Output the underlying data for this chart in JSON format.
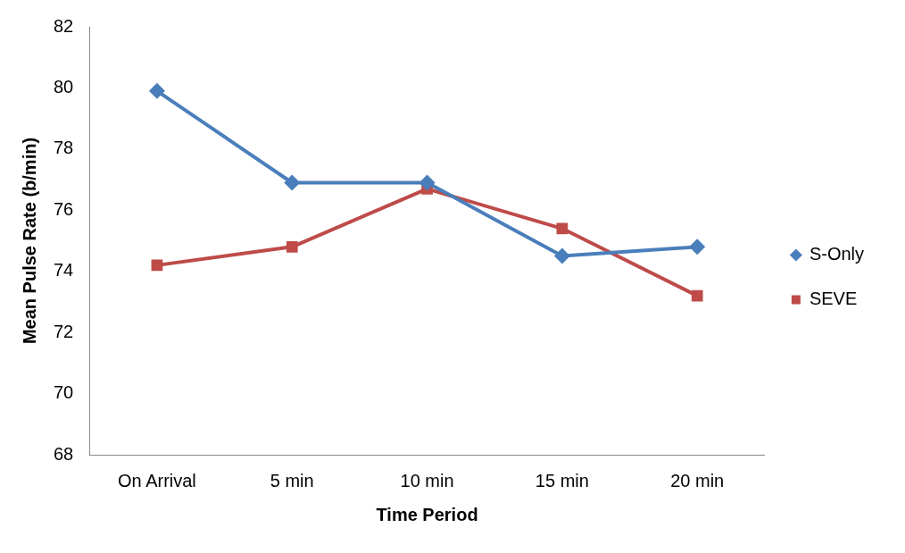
{
  "chart_data": {
    "type": "line",
    "xlabel": "Time Period",
    "ylabel": "Mean Pulse Rate (b/min)",
    "categories": [
      "On Arrival",
      "5 min",
      "10 min",
      "15 min",
      "20 min"
    ],
    "series": [
      {
        "name": "S-Only",
        "color": "#4a7ebb",
        "marker": "diamond",
        "values": [
          79.9,
          76.9,
          76.9,
          74.5,
          74.8
        ]
      },
      {
        "name": "SEVE",
        "color": "#be4b48",
        "marker": "square",
        "values": [
          74.2,
          74.8,
          76.7,
          75.4,
          73.2
        ]
      }
    ],
    "ylim": [
      68,
      82
    ],
    "yticks": [
      68,
      70,
      72,
      74,
      76,
      78,
      80,
      82
    ],
    "grid": false,
    "legend": "right"
  }
}
